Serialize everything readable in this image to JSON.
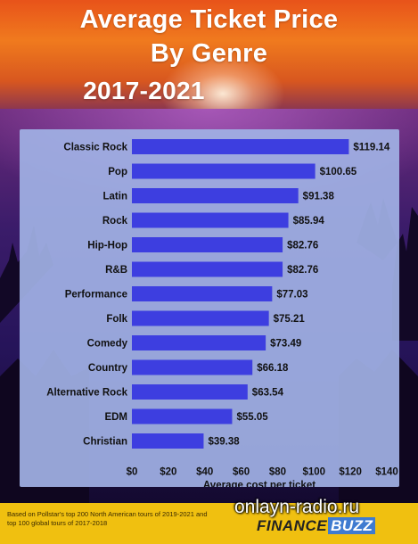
{
  "header": {
    "title_line1": "Average Ticket Price",
    "title_line2": "By Genre",
    "title_line3": "2017-2021"
  },
  "chart_data": {
    "type": "bar",
    "orientation": "horizontal",
    "categories": [
      "Classic Rock",
      "Pop",
      "Latin",
      "Rock",
      "Hip-Hop",
      "R&B",
      "Performance",
      "Folk",
      "Comedy",
      "Country",
      "Alternative Rock",
      "EDM",
      "Christian"
    ],
    "values": [
      119.14,
      100.65,
      91.38,
      85.94,
      82.76,
      82.76,
      77.03,
      75.21,
      73.49,
      66.18,
      63.54,
      55.05,
      39.38
    ],
    "value_labels": [
      "$119.14",
      "$100.65",
      "$91.38",
      "$85.94",
      "$82.76",
      "$82.76",
      "$77.03",
      "$75.21",
      "$73.49",
      "$66.18",
      "$63.54",
      "$55.05",
      "$39.38"
    ],
    "x_ticks": [
      "$0",
      "$20",
      "$40",
      "$60",
      "$80",
      "$100",
      "$120",
      "$140"
    ],
    "xlim": [
      0,
      140
    ],
    "xlabel": "Average cost per ticket",
    "bar_color": "#3d3ee0",
    "grid": false
  },
  "footer": {
    "note": "Based on Pollstar's top 200 North American tours of 2019-2021 and top 100 global tours of 2017-2018",
    "brand_part1": "FINANCE",
    "brand_part2": "BUZZ"
  },
  "watermark": "onlayn-radio.ru"
}
